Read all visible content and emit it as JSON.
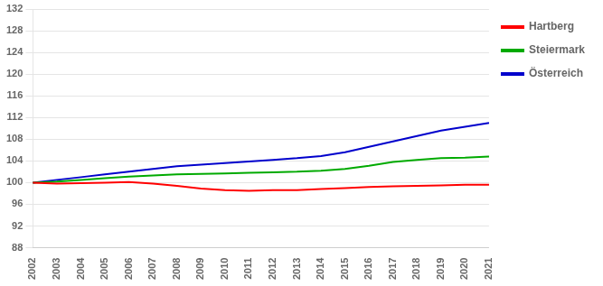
{
  "chart_data": {
    "type": "line",
    "categories": [
      "2002",
      "2003",
      "2004",
      "2005",
      "2006",
      "2007",
      "2008",
      "2009",
      "2010",
      "2011",
      "2012",
      "2013",
      "2014",
      "2015",
      "2016",
      "2017",
      "2018",
      "2019",
      "2020",
      "2021"
    ],
    "series": [
      {
        "name": "Hartberg",
        "color": "#ff0000",
        "values": [
          100.0,
          99.8,
          99.9,
          100.0,
          100.1,
          99.8,
          99.4,
          98.9,
          98.6,
          98.5,
          98.6,
          98.6,
          98.8,
          99.0,
          99.2,
          99.3,
          99.4,
          99.5,
          99.6,
          99.6
        ]
      },
      {
        "name": "Steiermark",
        "color": "#00aa00",
        "values": [
          100.0,
          100.2,
          100.5,
          100.8,
          101.1,
          101.3,
          101.5,
          101.6,
          101.7,
          101.8,
          101.9,
          102.0,
          102.2,
          102.5,
          103.1,
          103.8,
          104.2,
          104.5,
          104.6,
          104.8
        ]
      },
      {
        "name": "Österreich",
        "color": "#0000cc",
        "values": [
          100.0,
          100.5,
          101.0,
          101.5,
          102.0,
          102.5,
          103.0,
          103.3,
          103.6,
          103.9,
          104.2,
          104.5,
          104.9,
          105.6,
          106.6,
          107.6,
          108.6,
          109.6,
          110.3,
          111.0
        ]
      }
    ],
    "ylim": [
      88,
      132
    ],
    "yticks": [
      88,
      92,
      96,
      100,
      104,
      108,
      112,
      116,
      120,
      124,
      128,
      132
    ],
    "grid": "y",
    "legend": "right"
  }
}
